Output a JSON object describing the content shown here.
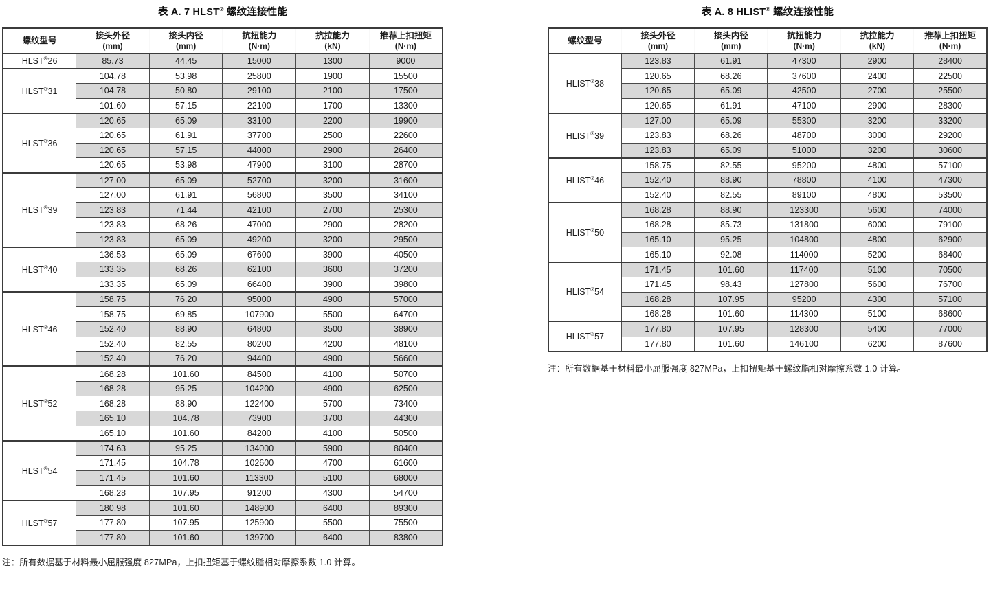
{
  "page": {
    "reg_symbol": "®",
    "colors": {
      "header_bg": "#2f5787",
      "header_text": "#ffffff",
      "row_gray": "#d8d8d8",
      "row_white": "#ffffff",
      "border_dark": "#3b3b3b",
      "border_thin": "#4a4a4a"
    }
  },
  "tables": [
    {
      "title": {
        "prefix": "表 A. 7 HLST",
        "reg": "®",
        "suffix": " 螺纹连接性能"
      },
      "columns": [
        {
          "label": "螺纹型号",
          "unit": ""
        },
        {
          "label": "接头外径",
          "unit": "(mm)"
        },
        {
          "label": "接头内径",
          "unit": "(mm)"
        },
        {
          "label": "抗扭能力",
          "unit": "(N·m)"
        },
        {
          "label": "抗拉能力",
          "unit": "(kN)"
        },
        {
          "label": "推荐上扣扭矩",
          "unit": "(N·m)"
        }
      ],
      "groups": [
        {
          "model": "HLST",
          "reg": "®",
          "size": "26",
          "rows": [
            [
              "85.73",
              "44.45",
              "15000",
              "1300",
              "9000"
            ]
          ]
        },
        {
          "model": "HLST",
          "reg": "®",
          "size": "31",
          "rows": [
            [
              "104.78",
              "53.98",
              "25800",
              "1900",
              "15500"
            ],
            [
              "104.78",
              "50.80",
              "29100",
              "2100",
              "17500"
            ],
            [
              "101.60",
              "57.15",
              "22100",
              "1700",
              "13300"
            ]
          ]
        },
        {
          "model": "HLST",
          "reg": "®",
          "size": "36",
          "rows": [
            [
              "120.65",
              "65.09",
              "33100",
              "2200",
              "19900"
            ],
            [
              "120.65",
              "61.91",
              "37700",
              "2500",
              "22600"
            ],
            [
              "120.65",
              "57.15",
              "44000",
              "2900",
              "26400"
            ],
            [
              "120.65",
              "53.98",
              "47900",
              "3100",
              "28700"
            ]
          ]
        },
        {
          "model": "HLST",
          "reg": "®",
          "size": "39",
          "rows": [
            [
              "127.00",
              "65.09",
              "52700",
              "3200",
              "31600"
            ],
            [
              "127.00",
              "61.91",
              "56800",
              "3500",
              "34100"
            ],
            [
              "123.83",
              "71.44",
              "42100",
              "2700",
              "25300"
            ],
            [
              "123.83",
              "68.26",
              "47000",
              "2900",
              "28200"
            ],
            [
              "123.83",
              "65.09",
              "49200",
              "3200",
              "29500"
            ]
          ]
        },
        {
          "model": "HLST",
          "reg": "®",
          "size": "40",
          "rows": [
            [
              "136.53",
              "65.09",
              "67600",
              "3900",
              "40500"
            ],
            [
              "133.35",
              "68.26",
              "62100",
              "3600",
              "37200"
            ],
            [
              "133.35",
              "65.09",
              "66400",
              "3900",
              "39800"
            ]
          ]
        },
        {
          "model": "HLST",
          "reg": "®",
          "size": "46",
          "rows": [
            [
              "158.75",
              "76.20",
              "95000",
              "4900",
              "57000"
            ],
            [
              "158.75",
              "69.85",
              "107900",
              "5500",
              "64700"
            ],
            [
              "152.40",
              "88.90",
              "64800",
              "3500",
              "38900"
            ],
            [
              "152.40",
              "82.55",
              "80200",
              "4200",
              "48100"
            ],
            [
              "152.40",
              "76.20",
              "94400",
              "4900",
              "56600"
            ]
          ]
        },
        {
          "model": "HLST",
          "reg": "®",
          "size": "52",
          "rows": [
            [
              "168.28",
              "101.60",
              "84500",
              "4100",
              "50700"
            ],
            [
              "168.28",
              "95.25",
              "104200",
              "4900",
              "62500"
            ],
            [
              "168.28",
              "88.90",
              "122400",
              "5700",
              "73400"
            ],
            [
              "165.10",
              "104.78",
              "73900",
              "3700",
              "44300"
            ],
            [
              "165.10",
              "101.60",
              "84200",
              "4100",
              "50500"
            ]
          ]
        },
        {
          "model": "HLST",
          "reg": "®",
          "size": "54",
          "rows": [
            [
              "174.63",
              "95.25",
              "134000",
              "5900",
              "80400"
            ],
            [
              "171.45",
              "104.78",
              "102600",
              "4700",
              "61600"
            ],
            [
              "171.45",
              "101.60",
              "113300",
              "5100",
              "68000"
            ],
            [
              "168.28",
              "107.95",
              "91200",
              "4300",
              "54700"
            ]
          ]
        },
        {
          "model": "HLST",
          "reg": "®",
          "size": "57",
          "rows": [
            [
              "180.98",
              "101.60",
              "148900",
              "6400",
              "89300"
            ],
            [
              "177.80",
              "107.95",
              "125900",
              "5500",
              "75500"
            ],
            [
              "177.80",
              "101.60",
              "139700",
              "6400",
              "83800"
            ]
          ]
        }
      ],
      "note": "注：所有数据基于材料最小屈服强度 827MPa，上扣扭矩基于螺纹脂相对摩擦系数 1.0 计算。"
    },
    {
      "title": {
        "prefix": "表 A. 8 HLIST",
        "reg": "®",
        "suffix": " 螺纹连接性能"
      },
      "columns": [
        {
          "label": "螺纹型号",
          "unit": ""
        },
        {
          "label": "接头外径",
          "unit": "(mm)"
        },
        {
          "label": "接头内径",
          "unit": "(mm)"
        },
        {
          "label": "抗扭能力",
          "unit": "(N·m)"
        },
        {
          "label": "抗拉能力",
          "unit": "(kN)"
        },
        {
          "label": "推荐上扣扭矩",
          "unit": "(N·m)"
        }
      ],
      "groups": [
        {
          "model": "HLIST",
          "reg": "®",
          "size": "38",
          "rows": [
            [
              "123.83",
              "61.91",
              "47300",
              "2900",
              "28400"
            ],
            [
              "120.65",
              "68.26",
              "37600",
              "2400",
              "22500"
            ],
            [
              "120.65",
              "65.09",
              "42500",
              "2700",
              "25500"
            ],
            [
              "120.65",
              "61.91",
              "47100",
              "2900",
              "28300"
            ]
          ]
        },
        {
          "model": "HLIST",
          "reg": "®",
          "size": "39",
          "rows": [
            [
              "127.00",
              "65.09",
              "55300",
              "3200",
              "33200"
            ],
            [
              "123.83",
              "68.26",
              "48700",
              "3000",
              "29200"
            ],
            [
              "123.83",
              "65.09",
              "51000",
              "3200",
              "30600"
            ]
          ]
        },
        {
          "model": "HLIST",
          "reg": "®",
          "size": "46",
          "rows": [
            [
              "158.75",
              "82.55",
              "95200",
              "4800",
              "57100"
            ],
            [
              "152.40",
              "88.90",
              "78800",
              "4100",
              "47300"
            ],
            [
              "152.40",
              "82.55",
              "89100",
              "4800",
              "53500"
            ]
          ]
        },
        {
          "model": "HLIST",
          "reg": "®",
          "size": "50",
          "rows": [
            [
              "168.28",
              "88.90",
              "123300",
              "5600",
              "74000"
            ],
            [
              "168.28",
              "85.73",
              "131800",
              "6000",
              "79100"
            ],
            [
              "165.10",
              "95.25",
              "104800",
              "4800",
              "62900"
            ],
            [
              "165.10",
              "92.08",
              "114000",
              "5200",
              "68400"
            ]
          ]
        },
        {
          "model": "HLIST",
          "reg": "®",
          "size": "54",
          "rows": [
            [
              "171.45",
              "101.60",
              "117400",
              "5100",
              "70500"
            ],
            [
              "171.45",
              "98.43",
              "127800",
              "5600",
              "76700"
            ],
            [
              "168.28",
              "107.95",
              "95200",
              "4300",
              "57100"
            ],
            [
              "168.28",
              "101.60",
              "114300",
              "5100",
              "68600"
            ]
          ]
        },
        {
          "model": "HLIST",
          "reg": "®",
          "size": "57",
          "rows": [
            [
              "177.80",
              "107.95",
              "128300",
              "5400",
              "77000"
            ],
            [
              "177.80",
              "101.60",
              "146100",
              "6200",
              "87600"
            ]
          ]
        }
      ],
      "note": "注：所有数据基于材料最小屈服强度 827MPa，上扣扭矩基于螺纹脂相对摩擦系数 1.0 计算。"
    }
  ]
}
